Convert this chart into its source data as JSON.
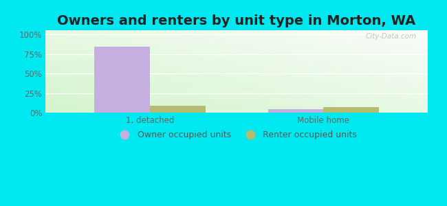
{
  "title": "Owners and renters by unit type in Morton, WA",
  "categories": [
    "1, detached",
    "Mobile home"
  ],
  "owner_values": [
    84,
    5
  ],
  "renter_values": [
    9,
    7
  ],
  "owner_color": "#c5aee0",
  "renter_color": "#b5bc72",
  "yticks": [
    0,
    25,
    50,
    75,
    100
  ],
  "ytick_labels": [
    "0%",
    "25%",
    "50%",
    "75%",
    "100%"
  ],
  "bar_width": 0.32,
  "title_fontsize": 14,
  "axis_fontsize": 8.5,
  "legend_fontsize": 9,
  "watermark": "City-Data.com",
  "figure_bg": "#00e8f0",
  "plot_bg_color": "#e8f5e0",
  "legend_owner": "Owner occupied units",
  "legend_renter": "Renter occupied units"
}
